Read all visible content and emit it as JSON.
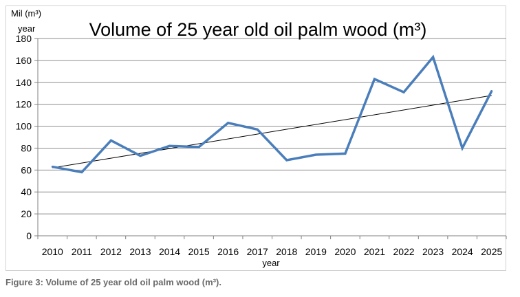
{
  "chart_data": {
    "type": "line",
    "title": "Volume of 25 year old oil palm wood (m³)",
    "ylabel_line1": "Mil (m³)",
    "ylabel_line2": "year",
    "xlabel": "year",
    "categories": [
      "2010",
      "2011",
      "2012",
      "2013",
      "2014",
      "2015",
      "2016",
      "2017",
      "2018",
      "2019",
      "2020",
      "2021",
      "2022",
      "2023",
      "2024",
      "2025"
    ],
    "series": [
      {
        "values": [
          63,
          58,
          87,
          73,
          82,
          81,
          103,
          97,
          69,
          74,
          75,
          143,
          131,
          163,
          80,
          132
        ],
        "color": "#4a7ebb"
      }
    ],
    "trendline": {
      "start": 62,
      "end": 128,
      "color": "#000000"
    },
    "ylim": [
      0,
      180
    ],
    "yticks": [
      0,
      20,
      40,
      60,
      80,
      100,
      120,
      140,
      160,
      180
    ],
    "grid": true
  },
  "caption": "Figure 3: Volume of 25 year old oil palm wood (m³)."
}
